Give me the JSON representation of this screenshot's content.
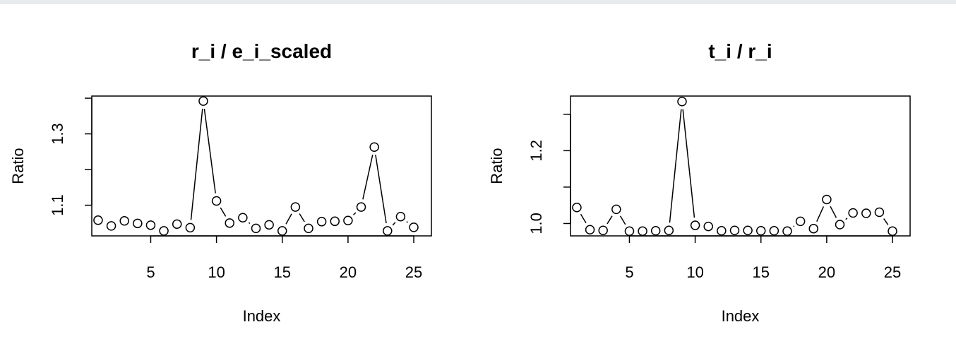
{
  "chart_data": [
    {
      "type": "line",
      "title": "r_i / e_i_scaled",
      "xlabel": "Index",
      "ylabel": "Ratio",
      "line_style": "points-connected-by-gapped-lines",
      "xlim": [
        0.52,
        26.34
      ],
      "ylim": [
        1.014,
        1.406
      ],
      "x_ticks": [
        5,
        10,
        15,
        20,
        25
      ],
      "y_ticks": [
        1.1,
        1.2,
        1.3,
        1.4
      ],
      "y_tick_labels": [
        "1.1",
        "",
        "1.3",
        ""
      ],
      "grid": false,
      "series": [
        {
          "x": [
            1,
            2,
            3,
            4,
            5,
            6,
            7,
            8,
            9,
            10,
            11,
            12,
            13,
            14,
            15,
            16,
            17,
            18,
            19,
            20,
            21,
            22,
            23,
            24,
            25
          ],
          "y": [
            1.058,
            1.042,
            1.056,
            1.049,
            1.044,
            1.028,
            1.047,
            1.037,
            1.392,
            1.112,
            1.05,
            1.065,
            1.035,
            1.045,
            1.028,
            1.095,
            1.035,
            1.054,
            1.055,
            1.057,
            1.095,
            1.263,
            1.028,
            1.068,
            1.038
          ]
        }
      ]
    },
    {
      "type": "line",
      "title": "t_i / r_i",
      "xlabel": "Index",
      "ylabel": "Ratio",
      "line_style": "points-connected-by-gapped-lines",
      "xlim": [
        0.52,
        26.34
      ],
      "ylim": [
        0.966,
        1.35
      ],
      "x_ticks": [
        5,
        10,
        15,
        20,
        25
      ],
      "y_ticks": [
        1.0,
        1.1,
        1.2,
        1.3
      ],
      "y_tick_labels": [
        "1.0",
        "",
        "1.2",
        ""
      ],
      "grid": false,
      "series": [
        {
          "x": [
            1,
            2,
            3,
            4,
            5,
            6,
            7,
            8,
            9,
            10,
            11,
            12,
            13,
            14,
            15,
            16,
            17,
            18,
            19,
            20,
            21,
            22,
            23,
            24,
            25
          ],
          "y": [
            1.044,
            0.983,
            0.981,
            1.039,
            0.979,
            0.979,
            0.98,
            0.981,
            1.335,
            0.995,
            0.992,
            0.98,
            0.981,
            0.981,
            0.98,
            0.98,
            0.979,
            1.006,
            0.986,
            1.066,
            0.997,
            1.029,
            1.028,
            1.031,
            0.979
          ]
        }
      ]
    }
  ]
}
